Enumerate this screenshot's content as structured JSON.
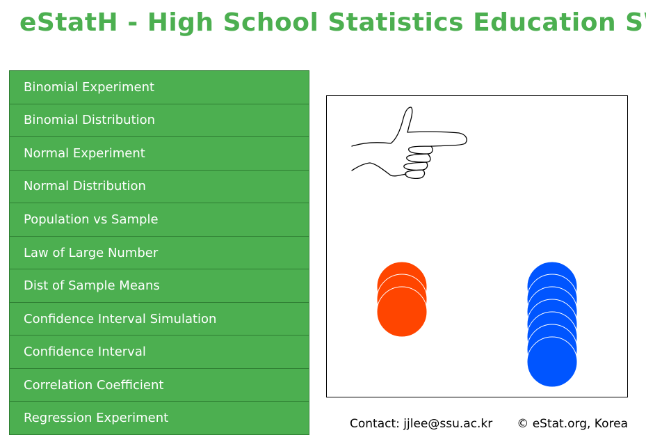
{
  "header": {
    "title": "eStatH - High School Statistics Education SW"
  },
  "menu": {
    "items": [
      {
        "label": "Binomial Experiment"
      },
      {
        "label": "Binomial Distribution"
      },
      {
        "label": "Normal Experiment"
      },
      {
        "label": "Normal Distribution"
      },
      {
        "label": "Population vs Sample"
      },
      {
        "label": "Law of Large Number"
      },
      {
        "label": "Dist of Sample Means"
      },
      {
        "label": "Confidence Interval Simulation"
      },
      {
        "label": "Confidence Interval"
      },
      {
        "label": "Correlation Coefficient"
      },
      {
        "label": "Regression Experiment"
      }
    ]
  },
  "preview": {
    "icons": [
      "pointing-hand-icon"
    ],
    "orange_ball_count": 3,
    "blue_ball_count": 7,
    "colors": {
      "orange": "#ff4500",
      "blue": "#0055ff",
      "accent": "#4caf50"
    }
  },
  "footer": {
    "contact": "Contact: jjlee@ssu.ac.kr",
    "copyright": "©  eStat.org, Korea"
  }
}
